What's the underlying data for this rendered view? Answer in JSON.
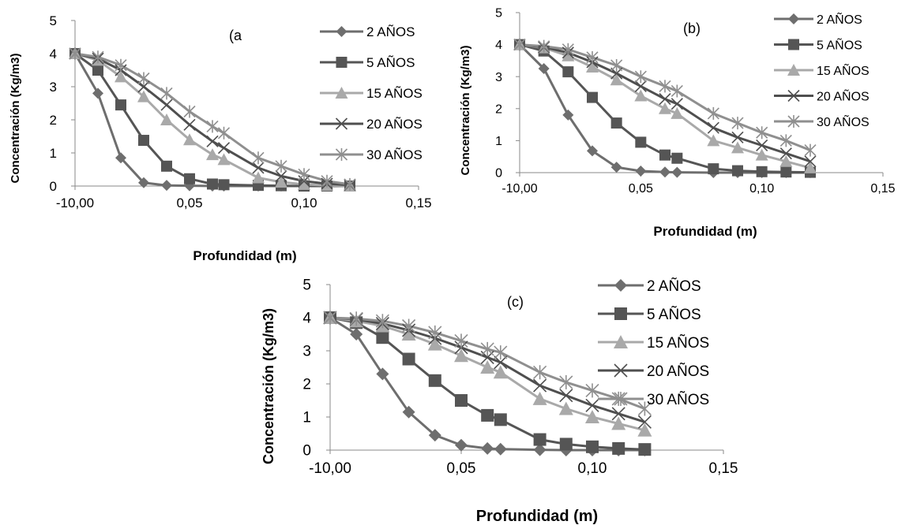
{
  "figure": {
    "charts": [
      {
        "panel_label": "(a",
        "xlabel": "Profundidad (m)",
        "ylabel": "Concentración (Kg/m3)"
      },
      {
        "panel_label": "(b)",
        "xlabel": "Profundidad (m)",
        "ylabel": "Concentración (Kg/m3)"
      },
      {
        "panel_label": "(c)",
        "xlabel": "Profundidad (m)",
        "ylabel": "Concentración (Kg/m3)"
      }
    ]
  },
  "chart_data": [
    {
      "type": "line",
      "panel_label": "(a",
      "xlabel": "Profundidad (m)",
      "ylabel": "Concentración (Kg/m3)",
      "xlim": [
        0,
        0.15
      ],
      "ylim": [
        0,
        5
      ],
      "x_ticks": [
        "-10,00",
        "0,05",
        "0,10",
        "0,15"
      ],
      "y_ticks": [
        "0",
        "1",
        "2",
        "3",
        "4",
        "5"
      ],
      "grid": false,
      "legend_position": "right",
      "series": [
        {
          "name": "2 AÑOS",
          "marker": "diamond",
          "color": "#6e6e6e",
          "x": [
            0,
            0.01,
            0.02,
            0.03,
            0.04,
            0.05,
            0.06,
            0.065,
            0.08,
            0.09,
            0.1,
            0.11,
            0.12
          ],
          "y": [
            4.0,
            2.8,
            0.85,
            0.1,
            0.02,
            0.01,
            0.0,
            0.0,
            0.0,
            0.0,
            0.0,
            0.0,
            0.0
          ]
        },
        {
          "name": "5 AÑOS",
          "marker": "square",
          "color": "#555555",
          "x": [
            0,
            0.01,
            0.02,
            0.03,
            0.04,
            0.05,
            0.06,
            0.065,
            0.08,
            0.09,
            0.1,
            0.11,
            0.12
          ],
          "y": [
            4.0,
            3.5,
            2.45,
            1.38,
            0.6,
            0.22,
            0.06,
            0.04,
            0.02,
            0.01,
            0.0,
            0.0,
            0.0
          ]
        },
        {
          "name": "15 AÑOS",
          "marker": "triangle",
          "color": "#a9a9a9",
          "x": [
            0,
            0.01,
            0.02,
            0.03,
            0.04,
            0.05,
            0.06,
            0.065,
            0.08,
            0.09,
            0.1,
            0.11,
            0.12
          ],
          "y": [
            4.0,
            3.8,
            3.3,
            2.7,
            2.0,
            1.4,
            0.95,
            0.8,
            0.25,
            0.12,
            0.05,
            0.02,
            0.0
          ]
        },
        {
          "name": "20 AÑOS",
          "marker": "x",
          "color": "#4f4f4f",
          "x": [
            0,
            0.01,
            0.02,
            0.03,
            0.04,
            0.05,
            0.06,
            0.065,
            0.08,
            0.09,
            0.1,
            0.11,
            0.12
          ],
          "y": [
            4.0,
            3.85,
            3.5,
            3.0,
            2.45,
            1.85,
            1.35,
            1.15,
            0.55,
            0.3,
            0.15,
            0.07,
            0.03
          ]
        },
        {
          "name": "30 AÑOS",
          "marker": "star",
          "color": "#8f8f8f",
          "x": [
            0,
            0.01,
            0.02,
            0.03,
            0.04,
            0.05,
            0.06,
            0.065,
            0.08,
            0.09,
            0.1,
            0.11,
            0.12
          ],
          "y": [
            4.0,
            3.9,
            3.65,
            3.25,
            2.8,
            2.25,
            1.8,
            1.6,
            0.85,
            0.6,
            0.35,
            0.15,
            0.05
          ]
        }
      ]
    },
    {
      "type": "line",
      "panel_label": "(b)",
      "xlabel": "Profundidad (m)",
      "ylabel": "Concentración (Kg/m3)",
      "xlim": [
        0,
        0.15
      ],
      "ylim": [
        0,
        5
      ],
      "x_ticks": [
        "-10,00",
        "0,05",
        "0,10",
        "0,15"
      ],
      "y_ticks": [
        "0",
        "1",
        "2",
        "3",
        "4",
        "5"
      ],
      "grid": false,
      "legend_position": "right",
      "series": [
        {
          "name": "2 AÑOS",
          "marker": "diamond",
          "color": "#6e6e6e",
          "x": [
            0,
            0.01,
            0.02,
            0.03,
            0.04,
            0.05,
            0.06,
            0.065,
            0.08,
            0.09,
            0.1,
            0.11,
            0.12
          ],
          "y": [
            4.0,
            3.25,
            1.8,
            0.68,
            0.17,
            0.05,
            0.02,
            0.01,
            0.0,
            0.0,
            0.0,
            0.0,
            0.0
          ]
        },
        {
          "name": "5 AÑOS",
          "marker": "square",
          "color": "#555555",
          "x": [
            0,
            0.01,
            0.02,
            0.03,
            0.04,
            0.05,
            0.06,
            0.065,
            0.08,
            0.09,
            0.1,
            0.11,
            0.12
          ],
          "y": [
            4.0,
            3.8,
            3.15,
            2.35,
            1.55,
            0.95,
            0.55,
            0.45,
            0.12,
            0.06,
            0.03,
            0.02,
            0.01
          ]
        },
        {
          "name": "15 AÑOS",
          "marker": "triangle",
          "color": "#a9a9a9",
          "x": [
            0,
            0.01,
            0.02,
            0.03,
            0.04,
            0.05,
            0.06,
            0.065,
            0.08,
            0.09,
            0.1,
            0.11,
            0.12
          ],
          "y": [
            4.0,
            3.9,
            3.65,
            3.3,
            2.9,
            2.4,
            2.0,
            1.85,
            1.0,
            0.78,
            0.55,
            0.35,
            0.15
          ]
        },
        {
          "name": "20 AÑOS",
          "marker": "x",
          "color": "#4f4f4f",
          "x": [
            0,
            0.01,
            0.02,
            0.03,
            0.04,
            0.05,
            0.06,
            0.065,
            0.08,
            0.09,
            0.1,
            0.11,
            0.12
          ],
          "y": [
            4.0,
            3.92,
            3.75,
            3.45,
            3.1,
            2.7,
            2.3,
            2.15,
            1.4,
            1.1,
            0.85,
            0.6,
            0.35
          ]
        },
        {
          "name": "30 AÑOS",
          "marker": "star",
          "color": "#8f8f8f",
          "x": [
            0,
            0.01,
            0.02,
            0.03,
            0.04,
            0.05,
            0.06,
            0.065,
            0.08,
            0.09,
            0.1,
            0.11,
            0.12
          ],
          "y": [
            4.0,
            3.95,
            3.85,
            3.6,
            3.35,
            3.0,
            2.7,
            2.55,
            1.85,
            1.55,
            1.25,
            1.0,
            0.7
          ]
        }
      ]
    },
    {
      "type": "line",
      "panel_label": "(c)",
      "xlabel": "Profundidad (m)",
      "ylabel": "Concentración (Kg/m3)",
      "xlim": [
        0,
        0.15
      ],
      "ylim": [
        0,
        5
      ],
      "x_ticks": [
        "-10,00",
        "0,05",
        "0,10",
        "0,15"
      ],
      "y_ticks": [
        "0",
        "1",
        "2",
        "3",
        "4",
        "5"
      ],
      "grid": false,
      "legend_position": "right",
      "series": [
        {
          "name": "2 AÑOS",
          "marker": "diamond",
          "color": "#6e6e6e",
          "x": [
            0,
            0.01,
            0.02,
            0.03,
            0.04,
            0.05,
            0.06,
            0.065,
            0.08,
            0.09,
            0.1,
            0.11,
            0.12
          ],
          "y": [
            4.0,
            3.5,
            2.3,
            1.15,
            0.45,
            0.15,
            0.05,
            0.03,
            0.01,
            0.0,
            0.0,
            0.0,
            0.0
          ]
        },
        {
          "name": "5 AÑOS",
          "marker": "square",
          "color": "#555555",
          "x": [
            0,
            0.01,
            0.02,
            0.03,
            0.04,
            0.05,
            0.06,
            0.065,
            0.08,
            0.09,
            0.1,
            0.11,
            0.12
          ],
          "y": [
            4.0,
            3.85,
            3.4,
            2.75,
            2.1,
            1.5,
            1.05,
            0.92,
            0.32,
            0.18,
            0.1,
            0.05,
            0.02
          ]
        },
        {
          "name": "15 AÑOS",
          "marker": "triangle",
          "color": "#a9a9a9",
          "x": [
            0,
            0.01,
            0.02,
            0.03,
            0.04,
            0.05,
            0.06,
            0.065,
            0.08,
            0.09,
            0.1,
            0.11,
            0.12
          ],
          "y": [
            4.0,
            3.9,
            3.75,
            3.5,
            3.2,
            2.85,
            2.5,
            2.35,
            1.55,
            1.25,
            1.0,
            0.8,
            0.6
          ]
        },
        {
          "name": "20 AÑOS",
          "marker": "x",
          "color": "#4f4f4f",
          "x": [
            0,
            0.01,
            0.02,
            0.03,
            0.04,
            0.05,
            0.06,
            0.065,
            0.08,
            0.09,
            0.1,
            0.11,
            0.12
          ],
          "y": [
            4.0,
            3.95,
            3.82,
            3.62,
            3.38,
            3.1,
            2.8,
            2.65,
            1.95,
            1.65,
            1.35,
            1.1,
            0.85
          ]
        },
        {
          "name": "30 AÑOS",
          "marker": "star",
          "color": "#8f8f8f",
          "x": [
            0,
            0.01,
            0.02,
            0.03,
            0.04,
            0.05,
            0.06,
            0.065,
            0.08,
            0.09,
            0.1,
            0.11,
            0.12
          ],
          "y": [
            4.0,
            3.97,
            3.9,
            3.75,
            3.55,
            3.3,
            3.05,
            2.95,
            2.35,
            2.05,
            1.8,
            1.55,
            1.25
          ]
        }
      ]
    }
  ]
}
